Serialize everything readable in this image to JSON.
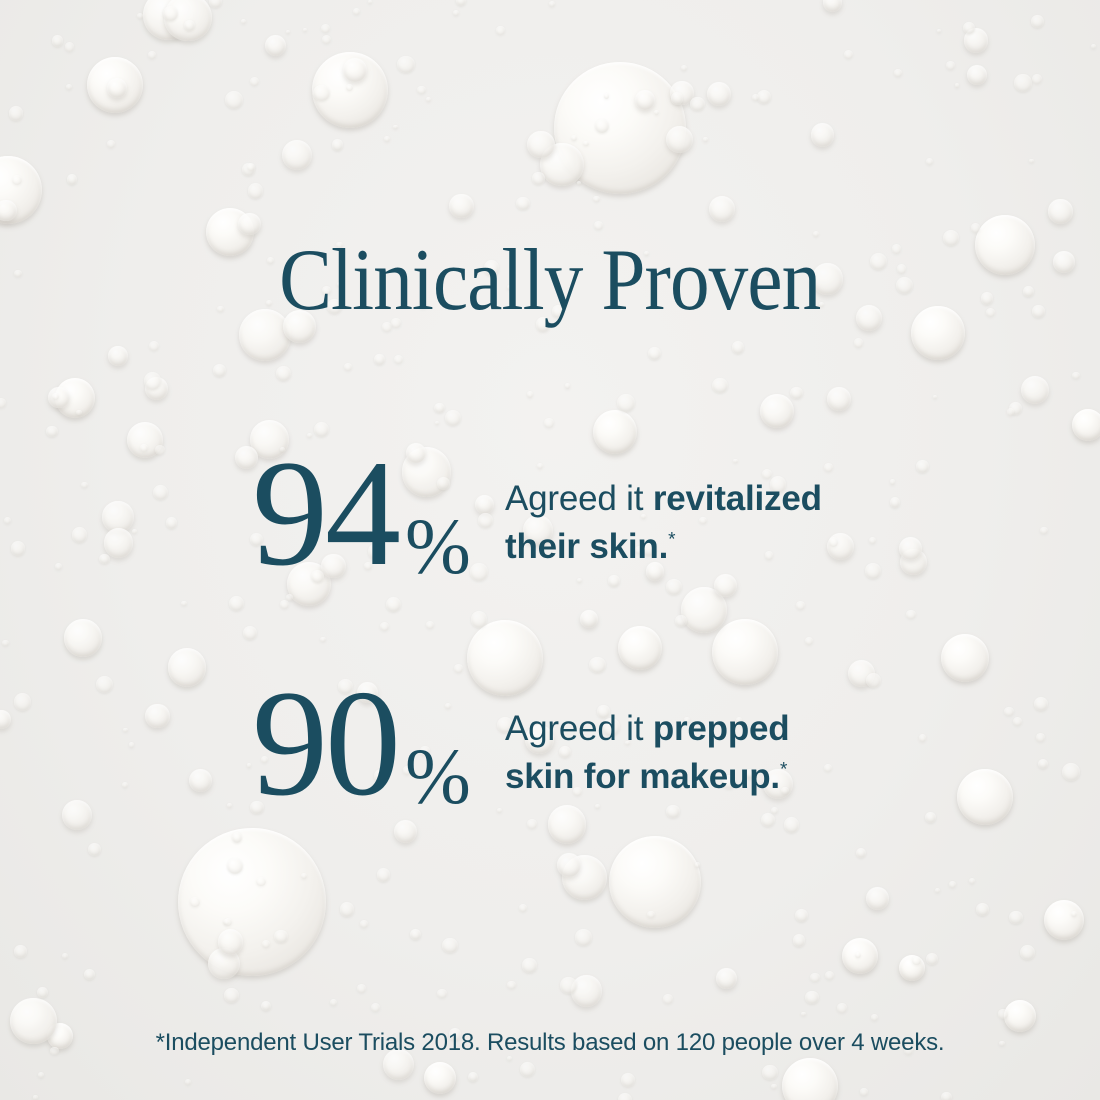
{
  "page": {
    "colors": {
      "ink": "#1b4d60",
      "background": "#efeeec"
    },
    "title": "Clinically Proven",
    "stats": [
      {
        "value": "94",
        "unit": "%",
        "lead": "Agreed it ",
        "emphasis": "revitalized",
        "line2": "their skin.",
        "marker": "*"
      },
      {
        "value": "90",
        "unit": "%",
        "lead": "Agreed it ",
        "emphasis": "prepped",
        "line2": "skin for makeup.",
        "marker": "*"
      }
    ],
    "footnote": "*Independent User Trials 2018. Results based on 120 people over 4 weeks."
  }
}
